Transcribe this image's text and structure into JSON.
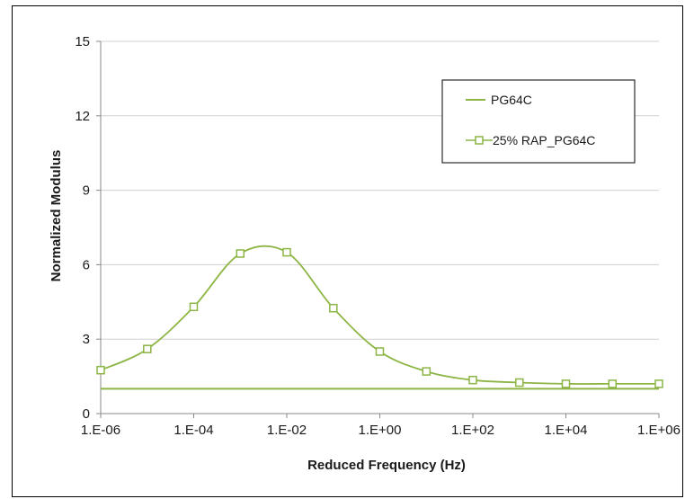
{
  "chart_data": {
    "type": "line",
    "xlabel": "Reduced Frequency (Hz)",
    "ylabel": "Normalized Modulus",
    "x_scale": "log",
    "xlim": [
      1e-06,
      1000000.0
    ],
    "ylim": [
      0,
      15
    ],
    "x_ticks": [
      "1.E-06",
      "1.E-04",
      "1.E-02",
      "1.E+00",
      "1.E+02",
      "1.E+04",
      "1.E+06"
    ],
    "x_tick_values": [
      1e-06,
      0.0001,
      0.01,
      1,
      100,
      10000,
      1000000
    ],
    "y_ticks": [
      "0",
      "3",
      "6",
      "9",
      "12",
      "15"
    ],
    "y_tick_values": [
      0,
      3,
      6,
      9,
      12,
      15
    ],
    "grid": "horizontal",
    "legend_position": "top-right",
    "series": [
      {
        "name": "PG64C",
        "marker": "none",
        "color": "#8cb545",
        "x": [
          1e-06,
          1000000.0
        ],
        "y": [
          1.0,
          1.0
        ]
      },
      {
        "name": "25% RAP_PG64C",
        "marker": "open-square",
        "color": "#8cb545",
        "x": [
          1e-06,
          1e-05,
          0.0001,
          0.001,
          0.01,
          0.1,
          1,
          10,
          100,
          1000,
          10000,
          100000,
          1000000
        ],
        "y": [
          1.75,
          2.6,
          4.3,
          6.45,
          6.5,
          4.25,
          2.5,
          1.7,
          1.35,
          1.25,
          1.2,
          1.2,
          1.2
        ]
      }
    ]
  }
}
